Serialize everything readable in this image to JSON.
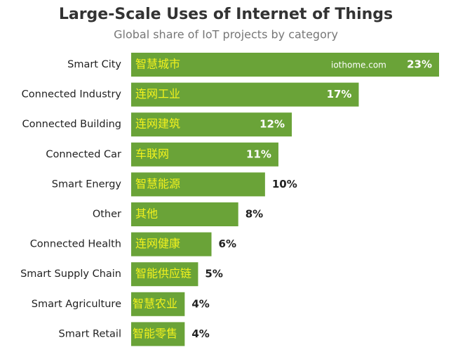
{
  "chart_data": {
    "type": "hbar",
    "title": "Large-Scale Uses of Internet of Things",
    "subtitle": "Global share of IoT projects by category",
    "categories": [
      "Smart City",
      "Connected Industry",
      "Connected Building",
      "Connected Car",
      "Smart Energy",
      "Other",
      "Connected Health",
      "Smart Supply Chain",
      "Smart Agriculture",
      "Smart Retail"
    ],
    "bar_labels": [
      "智慧城市",
      "连网工业",
      "连网建筑",
      "车联网",
      "智慧能源",
      "其他",
      "连网健康",
      "智能供应链",
      "智慧农业",
      "智能零售"
    ],
    "values": [
      23,
      17,
      12,
      11,
      10,
      8,
      6,
      5,
      4,
      4
    ],
    "value_labels": [
      "23%",
      "17%",
      "12%",
      "11%",
      "10%",
      "8%",
      "6%",
      "5%",
      "4%",
      "4%"
    ],
    "color": "#6aa338",
    "watermark": "iothome.com"
  }
}
